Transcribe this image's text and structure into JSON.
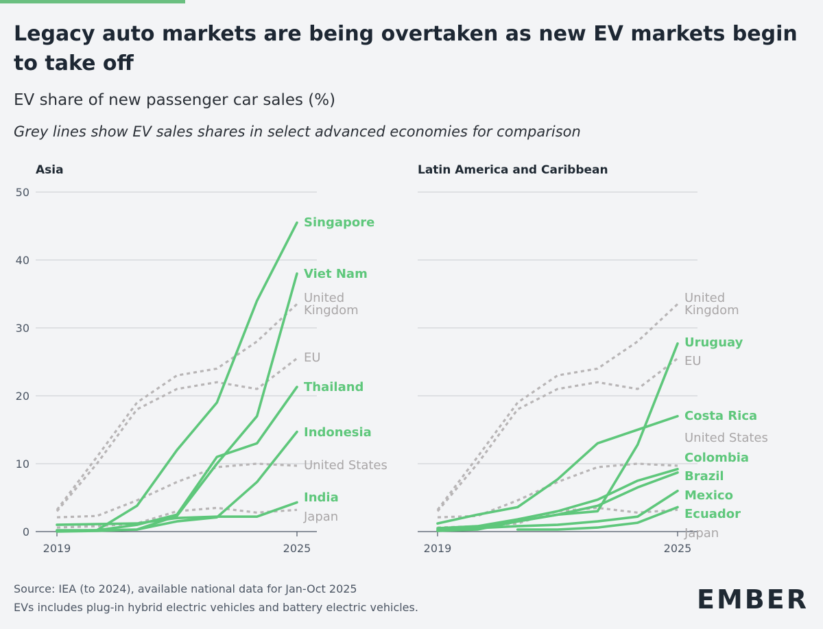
{
  "title": "Legacy auto markets are being overtaken as new EV markets begin to take off",
  "subtitle": "EV share of new passenger car sales (%)",
  "note": "Grey lines show EV sales shares in select advanced economies for comparison",
  "source_line1": "Source: IEA (to 2024), available national data for Jan-Oct 2025",
  "source_line2": "EVs includes plug-in hybrid electric vehicles and battery electric vehicles.",
  "logo": "EMBER",
  "colors": {
    "green": "#5ec77b",
    "grey": "#b8b5b6",
    "accent": "#6abf80"
  },
  "chart_data": [
    {
      "type": "line",
      "title": "Asia",
      "x": [
        2019,
        2020,
        2021,
        2022,
        2023,
        2024,
        2025
      ],
      "xticks": [
        "2019",
        "2025"
      ],
      "ylim": [
        0,
        50
      ],
      "yticks": [
        "0",
        "10",
        "20",
        "30",
        "40",
        "50"
      ],
      "grid": true,
      "series": [
        {
          "name": "Singapore",
          "group": "focus",
          "values": [
            0.2,
            0.2,
            3.8,
            12,
            19,
            34,
            45.5
          ]
        },
        {
          "name": "Viet Nam",
          "group": "focus",
          "values": [
            0.0,
            0.1,
            0.3,
            2.3,
            10,
            17,
            38
          ]
        },
        {
          "name": "Thailand",
          "group": "focus",
          "values": [
            0.1,
            0.2,
            1.0,
            2.5,
            11,
            13,
            21.3
          ]
        },
        {
          "name": "Indonesia",
          "group": "focus",
          "values": [
            0.1,
            0.2,
            0.3,
            1.5,
            2.1,
            7.3,
            14.7
          ]
        },
        {
          "name": "India",
          "group": "focus",
          "values": [
            1.0,
            1.1,
            1.2,
            2.0,
            2.2,
            2.2,
            4.3
          ]
        },
        {
          "name": "United Kingdom",
          "group": "comparison",
          "values": [
            3.2,
            11,
            19,
            23,
            24,
            28,
            33.5
          ]
        },
        {
          "name": "EU",
          "group": "comparison",
          "values": [
            3.0,
            10,
            18,
            21,
            22,
            21,
            25.5
          ]
        },
        {
          "name": "United States",
          "group": "comparison",
          "values": [
            2.1,
            2.3,
            4.6,
            7.3,
            9.5,
            10,
            9.7
          ]
        },
        {
          "name": "Japan",
          "group": "comparison",
          "values": [
            0.6,
            0.8,
            1.2,
            3.0,
            3.5,
            2.8,
            3.2
          ]
        }
      ],
      "labels": [
        {
          "text": "Singapore",
          "group": "focus"
        },
        {
          "text": "Viet Nam",
          "group": "focus"
        },
        {
          "text": "United",
          "group": "comparison"
        },
        {
          "text": "Kingdom",
          "group": "comparison"
        },
        {
          "text": "EU",
          "group": "comparison"
        },
        {
          "text": "Thailand",
          "group": "focus"
        },
        {
          "text": "Indonesia",
          "group": "focus"
        },
        {
          "text": "United States",
          "group": "comparison"
        },
        {
          "text": "India",
          "group": "focus"
        },
        {
          "text": "Japan",
          "group": "comparison"
        }
      ]
    },
    {
      "type": "line",
      "title": "Latin America and Caribbean",
      "x": [
        2019,
        2020,
        2021,
        2022,
        2023,
        2024,
        2025
      ],
      "xticks": [
        "2019",
        "2025"
      ],
      "ylim": [
        0,
        50
      ],
      "grid": true,
      "series": [
        {
          "name": "Uruguay",
          "group": "focus",
          "values": [
            0.2,
            0.5,
            1.5,
            2.5,
            3.0,
            12.8,
            27.7
          ]
        },
        {
          "name": "Costa Rica",
          "group": "focus",
          "values": [
            1.2,
            2.5,
            3.6,
            7.7,
            13,
            15,
            17
          ]
        },
        {
          "name": "Colombia",
          "group": "focus",
          "values": [
            0.5,
            0.8,
            1.8,
            3.0,
            4.7,
            7.5,
            9.2
          ]
        },
        {
          "name": "Brazil",
          "group": "focus",
          "values": [
            0.1,
            0.3,
            1.5,
            2.5,
            3.8,
            6.5,
            8.7
          ]
        },
        {
          "name": "Mexico",
          "group": "focus",
          "values": [
            0.3,
            0.5,
            0.8,
            1.0,
            1.5,
            2.2,
            6.0
          ]
        },
        {
          "name": "Ecuador",
          "group": "focus",
          "values": [
            null,
            null,
            0.3,
            0.3,
            0.6,
            1.3,
            3.6
          ]
        },
        {
          "name": "United Kingdom",
          "group": "comparison",
          "values": [
            3.2,
            11,
            19,
            23,
            24,
            28,
            33.5
          ]
        },
        {
          "name": "EU",
          "group": "comparison",
          "values": [
            3.0,
            10,
            18,
            21,
            22,
            21,
            25.5
          ]
        },
        {
          "name": "United States",
          "group": "comparison",
          "values": [
            2.1,
            2.3,
            4.6,
            7.3,
            9.5,
            10,
            9.7
          ]
        },
        {
          "name": "Japan",
          "group": "comparison",
          "values": [
            0.6,
            0.8,
            1.2,
            3.0,
            3.5,
            2.8,
            3.2
          ]
        }
      ],
      "labels": [
        {
          "text": "United",
          "group": "comparison"
        },
        {
          "text": "Kingdom",
          "group": "comparison"
        },
        {
          "text": "Uruguay",
          "group": "focus"
        },
        {
          "text": "EU",
          "group": "comparison"
        },
        {
          "text": "Costa Rica",
          "group": "focus"
        },
        {
          "text": "United States",
          "group": "comparison"
        },
        {
          "text": "Colombia",
          "group": "focus"
        },
        {
          "text": "Brazil",
          "group": "focus"
        },
        {
          "text": "Mexico",
          "group": "focus"
        },
        {
          "text": "Ecuador",
          "group": "focus"
        },
        {
          "text": "Japan",
          "group": "comparison"
        }
      ]
    }
  ]
}
